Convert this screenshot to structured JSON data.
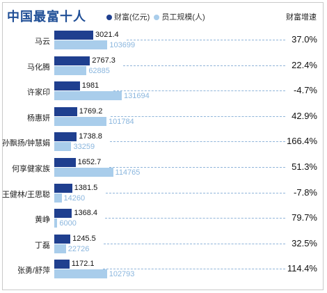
{
  "title": "中国最富十人",
  "legend": {
    "wealth": "财富(亿元)",
    "staff": "员工规模(人)"
  },
  "growth_header": "财富增速",
  "colors": {
    "wealth": "#1f3f8f",
    "staff": "#a9cdeb",
    "title": "#1f4e96",
    "leader": "#8fb4d9"
  },
  "chart_data": {
    "type": "bar",
    "title": "中国最富十人",
    "categories": [
      "马云",
      "马化腾",
      "许家印",
      "杨惠妍",
      "孙飘扬/钟慧娟",
      "何享健家族",
      "王健林/王思聪",
      "黄峥",
      "丁磊",
      "张勇/舒萍"
    ],
    "series": [
      {
        "name": "财富(亿元)",
        "values": [
          3021.4,
          2767.3,
          1981,
          1769.2,
          1738.8,
          1652.7,
          1381.5,
          1368.4,
          1245.5,
          1172.1
        ]
      },
      {
        "name": "员工规模(人)",
        "values": [
          103699,
          62885,
          131694,
          101784,
          33259,
          114765,
          14260,
          6000,
          22726,
          102793
        ]
      }
    ],
    "value_labels": {
      "wealth": [
        "3021.4",
        "2767.3",
        "1981",
        "1769.2",
        "1738.8",
        "1652.7",
        "1381.5",
        "1368.4",
        "1245.5",
        "1172.1"
      ],
      "staff": [
        "103699",
        "62885",
        "131694",
        "101784",
        "33259",
        "114765",
        "14260",
        "6000",
        "22726",
        "102793"
      ]
    },
    "growth_label": "财富增速",
    "growth": [
      "37.0%",
      "22.4%",
      "-4.7%",
      "42.9%",
      "166.4%",
      "51.3%",
      "-7.8%",
      "79.7%",
      "32.5%",
      "114.4%"
    ],
    "grid": false,
    "legend_position": "top"
  }
}
